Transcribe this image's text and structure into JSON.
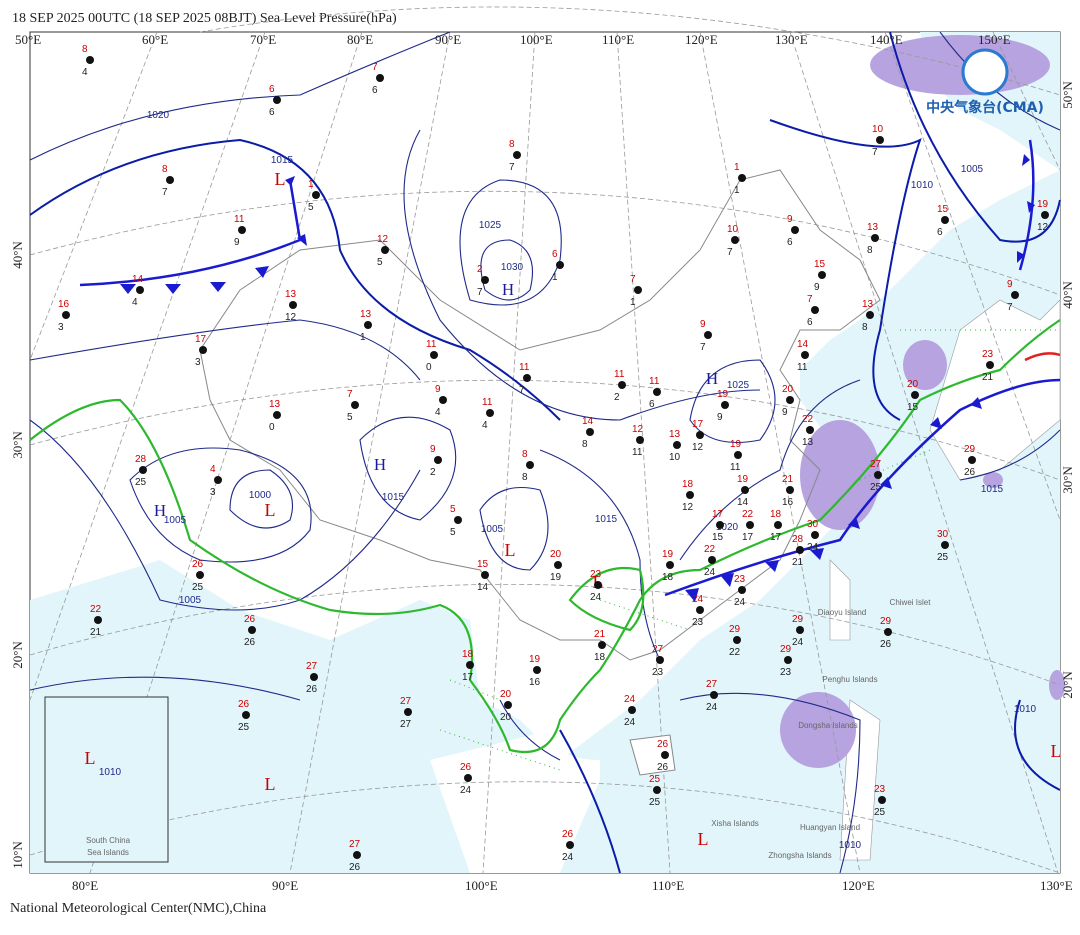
{
  "header": {
    "title": "18 SEP 2025 00UTC  (18 SEP 2025 08BJT) Sea Level Pressure(hPa)"
  },
  "footer": {
    "text": "National Meteorological Center(NMC),China"
  },
  "logo": {
    "text": "中央气象台(CMA)"
  },
  "lon_top": [
    "50°E",
    "60°E",
    "70°E",
    "80°E",
    "90°E",
    "100°E",
    "110°E",
    "120°E",
    "130°E",
    "140°E",
    "150°E"
  ],
  "lon_bottom": [
    "80°E",
    "90°E",
    "100°E",
    "110°E",
    "120°E",
    "130°E"
  ],
  "lat_left": [
    "40°N",
    "30°N",
    "20°N",
    "10°N"
  ],
  "lat_right": [
    "50°N",
    "40°N",
    "30°N",
    "20°N"
  ],
  "isobar_labels": [
    "1020",
    "1015",
    "1025",
    "1030",
    "1025",
    "1000",
    "1005",
    "1005",
    "1015",
    "1005",
    "1015",
    "1020",
    "1010",
    "1005",
    "1015",
    "1010",
    "1010",
    "1010"
  ],
  "systems": [
    "L",
    "H",
    "H",
    "H",
    "L",
    "L",
    "H",
    "L",
    "L",
    "L",
    "L",
    "L"
  ],
  "places": [
    "Diaoyu Island",
    "Chiwei Islet",
    "Penghu Islands",
    "Dongsha Islands",
    "Xisha Islands",
    "Huangyan Island",
    "Zhongsha Islands",
    "South China",
    "Sea Islands"
  ],
  "stations": [
    [
      8,
      4
    ],
    [
      7,
      6
    ],
    [
      6,
      6
    ],
    [
      8,
      7
    ],
    [
      11,
      9
    ],
    [
      14,
      4
    ],
    [
      1,
      5
    ],
    [
      12,
      5
    ],
    [
      13,
      12
    ],
    [
      16,
      3
    ],
    [
      13,
      1
    ],
    [
      17,
      3
    ],
    [
      11,
      0
    ],
    [
      8,
      7
    ],
    [
      2,
      7
    ],
    [
      6,
      1
    ],
    [
      7,
      1
    ],
    [
      1,
      1
    ],
    [
      10,
      7
    ],
    [
      9,
      6
    ],
    [
      13,
      8
    ],
    [
      15,
      9
    ],
    [
      15,
      6
    ],
    [
      10,
      7
    ],
    [
      19,
      12
    ],
    [
      9,
      7
    ],
    [
      9,
      7
    ],
    [
      7,
      6
    ],
    [
      13,
      8
    ],
    [
      14,
      11
    ],
    [
      23,
      21
    ],
    [
      20,
      15
    ],
    [
      11,
      7
    ],
    [
      9,
      4
    ],
    [
      11,
      4
    ],
    [
      7,
      5
    ],
    [
      13,
      0
    ],
    [
      11,
      2
    ],
    [
      11,
      6
    ],
    [
      12,
      11
    ],
    [
      14,
      8
    ],
    [
      13,
      10
    ],
    [
      17,
      12
    ],
    [
      19,
      9
    ],
    [
      19,
      11
    ],
    [
      20,
      9
    ],
    [
      22,
      13
    ],
    [
      21,
      16
    ],
    [
      27,
      25
    ],
    [
      29,
      26
    ],
    [
      18,
      12
    ],
    [
      19,
      14
    ],
    [
      17,
      15
    ],
    [
      22,
      17
    ],
    [
      18,
      17
    ],
    [
      28,
      21
    ],
    [
      30,
      24
    ],
    [
      8,
      8
    ],
    [
      9,
      2
    ],
    [
      28,
      25
    ],
    [
      4,
      3
    ],
    [
      5,
      5
    ],
    [
      20,
      19
    ],
    [
      15,
      14
    ],
    [
      23,
      24
    ],
    [
      19,
      18
    ],
    [
      22,
      24
    ],
    [
      23,
      24
    ],
    [
      24,
      23
    ],
    [
      21,
      18
    ],
    [
      27,
      23
    ],
    [
      29,
      22
    ],
    [
      29,
      24
    ],
    [
      29,
      23
    ],
    [
      29,
      26
    ],
    [
      30,
      25
    ],
    [
      26,
      25
    ],
    [
      22,
      21
    ],
    [
      26,
      26
    ],
    [
      27,
      26
    ],
    [
      26,
      25
    ],
    [
      27,
      27
    ],
    [
      18,
      17
    ],
    [
      19,
      16
    ],
    [
      20,
      20
    ],
    [
      24,
      24
    ],
    [
      27,
      24
    ],
    [
      26,
      26
    ],
    [
      25,
      25
    ],
    [
      26,
      24
    ],
    [
      26,
      24
    ],
    [
      27,
      26
    ],
    [
      23,
      25
    ]
  ]
}
